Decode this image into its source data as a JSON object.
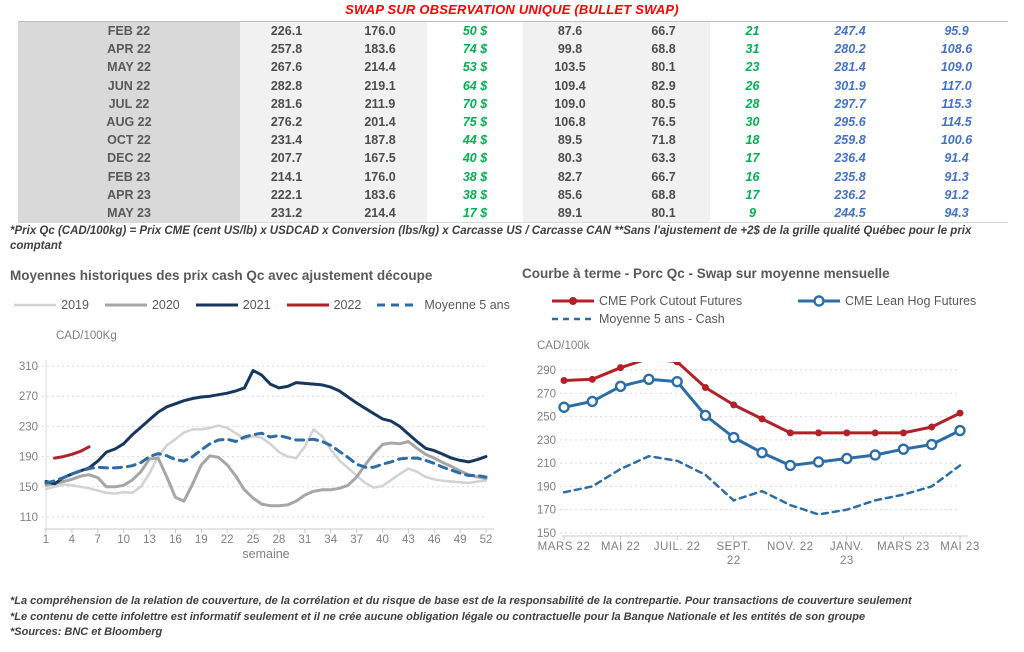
{
  "title": "SWAP SUR OBSERVATION UNIQUE (BULLET SWAP)",
  "table": {
    "rows": [
      [
        "FEB 22",
        "226.1",
        "176.0",
        "50 $",
        "87.6",
        "66.7",
        "21",
        "247.4",
        "95.9"
      ],
      [
        "APR 22",
        "257.8",
        "183.6",
        "74 $",
        "99.8",
        "68.8",
        "31",
        "280.2",
        "108.6"
      ],
      [
        "MAY 22",
        "267.6",
        "214.4",
        "53 $",
        "103.5",
        "80.1",
        "23",
        "281.4",
        "109.0"
      ],
      [
        "JUN 22",
        "282.8",
        "219.1",
        "64 $",
        "109.4",
        "82.9",
        "26",
        "301.9",
        "117.0"
      ],
      [
        "JUL 22",
        "281.6",
        "211.9",
        "70 $",
        "109.0",
        "80.5",
        "28",
        "297.7",
        "115.3"
      ],
      [
        "AUG 22",
        "276.2",
        "201.4",
        "75 $",
        "106.8",
        "76.5",
        "30",
        "295.6",
        "114.5"
      ],
      [
        "OCT 22",
        "231.4",
        "187.8",
        "44 $",
        "89.5",
        "71.8",
        "18",
        "259.8",
        "100.6"
      ],
      [
        "DEC 22",
        "207.7",
        "167.5",
        "40 $",
        "80.3",
        "63.3",
        "17",
        "236.4",
        "91.4"
      ],
      [
        "FEB 23",
        "214.1",
        "176.0",
        "38 $",
        "82.7",
        "66.7",
        "16",
        "235.8",
        "91.3"
      ],
      [
        "APR 23",
        "222.1",
        "183.6",
        "38 $",
        "85.6",
        "68.8",
        "17",
        "236.2",
        "91.2"
      ],
      [
        "MAY 23",
        "231.2",
        "214.4",
        "17 $",
        "89.1",
        "80.1",
        "9",
        "244.5",
        "94.3"
      ]
    ]
  },
  "table_footnote": "*Prix Qc (CAD/100kg) = Prix CME (cent US/lb) x USDCAD x Conversion (lbs/kg) x Carcasse US / Carcasse CAN **Sans l'ajustement de +2$ de la grille qualité Québec pour le prix comptant",
  "colors": {
    "title_red": "#ff0000",
    "green": "#00b050",
    "blue": "#4472c4",
    "navy": "#17375e",
    "dark_red": "#b12228",
    "steel_blue": "#2e6da4",
    "gray_2020": "#a6a6a6",
    "light_gray_2019": "#d2d2d2",
    "grid": "#d9d9d9",
    "axis_text": "#7f7f7f"
  },
  "chart_data": [
    {
      "type": "line",
      "title": "Moyennes historiques des prix cash Qc avec ajustement découpe",
      "ylabel": "CAD/100Kg",
      "xlabel": "semaine",
      "ylim": [
        110,
        310
      ],
      "yticks": [
        110,
        150,
        190,
        230,
        270,
        310
      ],
      "xticks": [
        1,
        4,
        7,
        10,
        13,
        16,
        19,
        22,
        25,
        28,
        31,
        34,
        37,
        40,
        43,
        46,
        49,
        52
      ],
      "x_min": 1,
      "x_count": 52,
      "grid": true,
      "legend_position": "top-center",
      "series": [
        {
          "name": "2019",
          "color": "#d2d2d2",
          "width": 2.5,
          "values": [
            147,
            150,
            153,
            152,
            150,
            148,
            145,
            142,
            141,
            143,
            142,
            150,
            168,
            190,
            205,
            213,
            222,
            226,
            226,
            228,
            231,
            228,
            221,
            213,
            217,
            215,
            207,
            196,
            190,
            188,
            203,
            226,
            217,
            199,
            185,
            175,
            165,
            155,
            149,
            151,
            159,
            167,
            174,
            170,
            163,
            160,
            158,
            157,
            156,
            155,
            157,
            158
          ]
        },
        {
          "name": "2020",
          "color": "#a6a6a6",
          "width": 3,
          "values": [
            152,
            154,
            157,
            160,
            164,
            166,
            162,
            150,
            150,
            152,
            159,
            170,
            187,
            188,
            163,
            136,
            131,
            154,
            179,
            191,
            189,
            179,
            164,
            146,
            135,
            127,
            125,
            125,
            126,
            131,
            139,
            144,
            146,
            146,
            148,
            152,
            163,
            179,
            194,
            206,
            208,
            207,
            210,
            201,
            193,
            188,
            182,
            177,
            171,
            166,
            163,
            161
          ]
        },
        {
          "name": "2021",
          "color": "#17375e",
          "width": 3,
          "values": [
            157,
            154,
            162,
            167,
            171,
            175,
            184,
            196,
            200,
            207,
            219,
            229,
            239,
            249,
            256,
            260,
            264,
            267,
            269,
            270,
            272,
            274,
            277,
            281,
            304,
            298,
            286,
            281,
            283,
            288,
            287,
            286,
            285,
            282,
            277,
            269,
            261,
            254,
            247,
            240,
            237,
            230,
            220,
            210,
            201,
            198,
            193,
            188,
            185,
            183,
            186,
            190
          ]
        },
        {
          "name": "2022",
          "color": "#b12228",
          "width": 3,
          "x_start": 2,
          "values": [
            188,
            190,
            193,
            197,
            203
          ]
        },
        {
          "name": "Moyenne 5 ans",
          "color": "#2e6da4",
          "width": 3,
          "dash": "8,6",
          "values": [
            155,
            158,
            162,
            167,
            171,
            174,
            176,
            175,
            175,
            176,
            178,
            182,
            190,
            194,
            191,
            186,
            184,
            190,
            199,
            207,
            212,
            213,
            210,
            216,
            219,
            221,
            216,
            218,
            215,
            212,
            212,
            213,
            210,
            205,
            197,
            189,
            180,
            176,
            176,
            180,
            183,
            187,
            188,
            188,
            185,
            181,
            176,
            172,
            168,
            165,
            165,
            163
          ]
        }
      ]
    },
    {
      "type": "line",
      "title": "Courbe à terme - Porc Qc - Swap sur moyenne mensuelle",
      "ylabel": "CAD/100k",
      "xlabel": "",
      "ylim": [
        150,
        290
      ],
      "yticks": [
        150,
        170,
        190,
        210,
        230,
        250,
        270,
        290
      ],
      "x_min": 0,
      "x_count": 15,
      "grid": true,
      "legend_position": "top-left-two-rows",
      "xtick_labels": [
        {
          "i": 0,
          "lines": [
            "MARS 22"
          ]
        },
        {
          "i": 2,
          "lines": [
            "MAI 22"
          ]
        },
        {
          "i": 4,
          "lines": [
            "JUIL. 22"
          ]
        },
        {
          "i": 6,
          "lines": [
            "SEPT.",
            "22"
          ]
        },
        {
          "i": 8,
          "lines": [
            "NOV. 22"
          ]
        },
        {
          "i": 10,
          "lines": [
            "JANV.",
            "23"
          ]
        },
        {
          "i": 12,
          "lines": [
            "MARS 23"
          ]
        },
        {
          "i": 14,
          "lines": [
            "MAI 23"
          ]
        }
      ],
      "series": [
        {
          "name": "CME Pork Cutout Futures",
          "color": "#b12228",
          "width": 3,
          "marker": "filled",
          "values": [
            281,
            282,
            292,
            300,
            297,
            275,
            260,
            248,
            236,
            236,
            236,
            236,
            236,
            241,
            253
          ]
        },
        {
          "name": "CME Lean Hog Futures",
          "color": "#2e6da4",
          "width": 3,
          "marker": "open",
          "values": [
            258,
            263,
            276,
            282,
            280,
            251,
            232,
            219,
            208,
            211,
            214,
            217,
            222,
            226,
            238
          ]
        },
        {
          "name": "Moyenne 5 ans - Cash",
          "color": "#2e6da4",
          "width": 2.5,
          "dash": "6,5",
          "values": [
            185,
            190,
            205,
            216,
            212,
            200,
            178,
            186,
            174,
            166,
            170,
            178,
            183,
            190,
            208
          ]
        }
      ]
    }
  ],
  "footnotes": [
    "*La compréhension de la relation de couverture, de la corrélation et du risque de base est de la responsabilité de la contrepartie. Pour transactions de couverture seulement",
    "*Le contenu de cette infolettre est informatif seulement et il ne crée aucune obligation légale ou contractuelle pour la Banque Nationale et les entités de son groupe",
    "*Sources: BNC et Bloomberg"
  ]
}
